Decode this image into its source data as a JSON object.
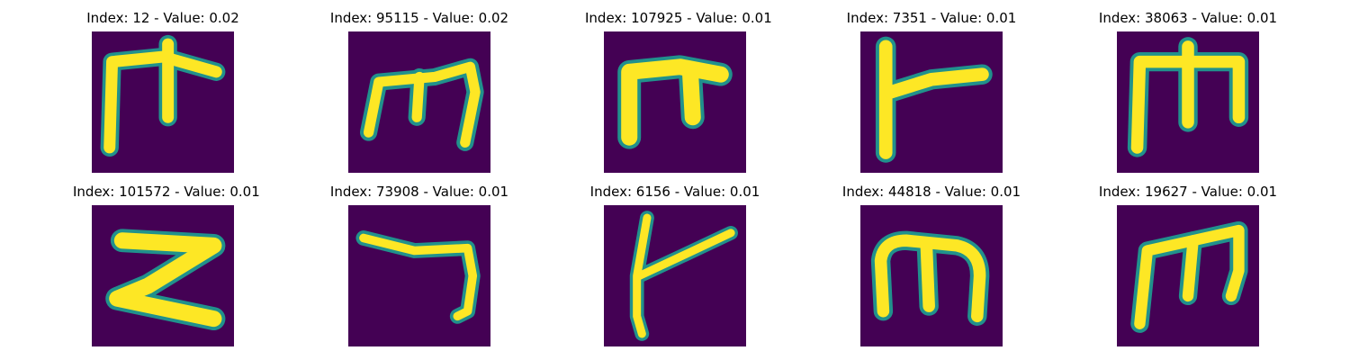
{
  "colors": {
    "background": "#440154",
    "stroke_core": "#fde725",
    "stroke_edge": "#21918c"
  },
  "panels": [
    {
      "title": "Index: 12 - Value: 0.02",
      "glyph": "m-tall-left-arm"
    },
    {
      "title": "Index: 95115 - Value: 0.02",
      "glyph": "m-three-legs"
    },
    {
      "title": "Index: 107925 - Value: 0.01",
      "glyph": "m-short-thick"
    },
    {
      "title": "Index: 7351 - Value: 0.01",
      "glyph": "vertical-with-right-arm"
    },
    {
      "title": "Index: 38063 - Value: 0.01",
      "glyph": "m-three-legs-wide"
    },
    {
      "title": "Index: 101572 - Value: 0.01",
      "glyph": "z-shape"
    },
    {
      "title": "Index: 73908 - Value: 0.01",
      "glyph": "hook-right"
    },
    {
      "title": "Index: 6156 - Value: 0.01",
      "glyph": "slanted-y"
    },
    {
      "title": "Index: 44818 - Value: 0.01",
      "glyph": "m-rounded"
    },
    {
      "title": "Index: 19627 - Value: 0.01",
      "glyph": "m-slanted"
    }
  ]
}
